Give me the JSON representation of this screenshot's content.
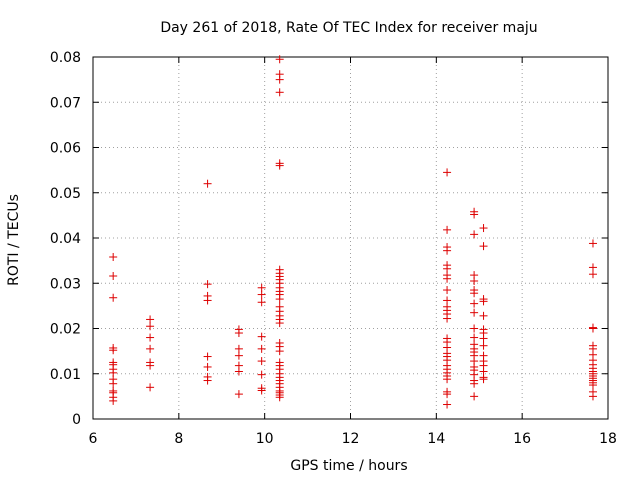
{
  "chart_data": {
    "type": "scatter",
    "title": "Day 261 of 2018, Rate Of TEC Index for receiver maju",
    "xlabel": "GPS time / hours",
    "ylabel": "ROTI / TECUs",
    "xlim": [
      6,
      18
    ],
    "ylim": [
      0,
      0.08
    ],
    "xticks": [
      6,
      8,
      10,
      12,
      14,
      16,
      18
    ],
    "xtick_labels": [
      "6",
      "8",
      "10",
      "12",
      "14",
      "16",
      "18"
    ],
    "yticks": [
      0,
      0.01,
      0.02,
      0.03,
      0.04,
      0.05,
      0.06,
      0.07,
      0.08
    ],
    "ytick_labels": [
      "0",
      "0.01",
      "0.02",
      "0.03",
      "0.04",
      "0.05",
      "0.06",
      "0.07",
      "0.08"
    ],
    "grid": true,
    "marker": "+",
    "color": "#dd0000",
    "series": [
      {
        "name": "ROTI",
        "points": [
          [
            6.47,
            0.0358
          ],
          [
            6.47,
            0.0316
          ],
          [
            6.47,
            0.0268
          ],
          [
            6.47,
            0.0157
          ],
          [
            6.47,
            0.0152
          ],
          [
            6.47,
            0.0125
          ],
          [
            6.47,
            0.012
          ],
          [
            6.47,
            0.011
          ],
          [
            6.47,
            0.0102
          ],
          [
            6.47,
            0.0088
          ],
          [
            6.47,
            0.0078
          ],
          [
            6.47,
            0.0062
          ],
          [
            6.47,
            0.0058
          ],
          [
            6.47,
            0.0048
          ],
          [
            6.47,
            0.004
          ],
          [
            7.33,
            0.022
          ],
          [
            7.33,
            0.0205
          ],
          [
            7.33,
            0.018
          ],
          [
            7.33,
            0.0155
          ],
          [
            7.33,
            0.0125
          ],
          [
            7.33,
            0.0118
          ],
          [
            7.33,
            0.007
          ],
          [
            8.67,
            0.052
          ],
          [
            8.67,
            0.0298
          ],
          [
            8.67,
            0.0272
          ],
          [
            8.67,
            0.0262
          ],
          [
            8.67,
            0.0138
          ],
          [
            8.67,
            0.0115
          ],
          [
            8.67,
            0.0093
          ],
          [
            8.67,
            0.0085
          ],
          [
            9.4,
            0.0198
          ],
          [
            9.4,
            0.019
          ],
          [
            9.4,
            0.0155
          ],
          [
            9.4,
            0.014
          ],
          [
            9.4,
            0.0118
          ],
          [
            9.4,
            0.0105
          ],
          [
            9.4,
            0.0055
          ],
          [
            9.93,
            0.029
          ],
          [
            9.93,
            0.0275
          ],
          [
            9.93,
            0.0258
          ],
          [
            9.93,
            0.0182
          ],
          [
            9.93,
            0.0155
          ],
          [
            9.93,
            0.0128
          ],
          [
            9.93,
            0.0098
          ],
          [
            9.93,
            0.0068
          ],
          [
            9.93,
            0.0063
          ],
          [
            10.35,
            0.0795
          ],
          [
            10.35,
            0.0762
          ],
          [
            10.35,
            0.075
          ],
          [
            10.35,
            0.0722
          ],
          [
            10.35,
            0.0565
          ],
          [
            10.35,
            0.056
          ],
          [
            10.35,
            0.033
          ],
          [
            10.35,
            0.0322
          ],
          [
            10.35,
            0.0315
          ],
          [
            10.35,
            0.0308
          ],
          [
            10.35,
            0.03
          ],
          [
            10.35,
            0.029
          ],
          [
            10.35,
            0.0282
          ],
          [
            10.35,
            0.0275
          ],
          [
            10.35,
            0.0265
          ],
          [
            10.35,
            0.0248
          ],
          [
            10.35,
            0.0238
          ],
          [
            10.35,
            0.0228
          ],
          [
            10.35,
            0.022
          ],
          [
            10.35,
            0.0212
          ],
          [
            10.35,
            0.0168
          ],
          [
            10.35,
            0.016
          ],
          [
            10.35,
            0.015
          ],
          [
            10.35,
            0.0125
          ],
          [
            10.35,
            0.0118
          ],
          [
            10.35,
            0.011
          ],
          [
            10.35,
            0.01
          ],
          [
            10.35,
            0.0092
          ],
          [
            10.35,
            0.0085
          ],
          [
            10.35,
            0.0078
          ],
          [
            10.35,
            0.007
          ],
          [
            10.35,
            0.0062
          ],
          [
            10.35,
            0.0058
          ],
          [
            10.35,
            0.0053
          ],
          [
            10.35,
            0.0048
          ],
          [
            14.25,
            0.0545
          ],
          [
            14.25,
            0.0418
          ],
          [
            14.25,
            0.038
          ],
          [
            14.25,
            0.0372
          ],
          [
            14.25,
            0.034
          ],
          [
            14.25,
            0.0332
          ],
          [
            14.25,
            0.0318
          ],
          [
            14.25,
            0.031
          ],
          [
            14.25,
            0.0285
          ],
          [
            14.25,
            0.0262
          ],
          [
            14.25,
            0.0248
          ],
          [
            14.25,
            0.024
          ],
          [
            14.25,
            0.0232
          ],
          [
            14.25,
            0.0222
          ],
          [
            14.25,
            0.0178
          ],
          [
            14.25,
            0.017
          ],
          [
            14.25,
            0.0158
          ],
          [
            14.25,
            0.0145
          ],
          [
            14.25,
            0.0138
          ],
          [
            14.25,
            0.013
          ],
          [
            14.25,
            0.0118
          ],
          [
            14.25,
            0.011
          ],
          [
            14.25,
            0.0102
          ],
          [
            14.25,
            0.0095
          ],
          [
            14.25,
            0.0088
          ],
          [
            14.25,
            0.006
          ],
          [
            14.25,
            0.0055
          ],
          [
            14.25,
            0.0032
          ],
          [
            14.88,
            0.0458
          ],
          [
            14.88,
            0.0452
          ],
          [
            14.88,
            0.0408
          ],
          [
            14.88,
            0.0318
          ],
          [
            14.88,
            0.0305
          ],
          [
            14.88,
            0.0285
          ],
          [
            14.88,
            0.0278
          ],
          [
            14.88,
            0.0255
          ],
          [
            14.88,
            0.0235
          ],
          [
            14.88,
            0.02
          ],
          [
            14.88,
            0.018
          ],
          [
            14.88,
            0.0165
          ],
          [
            14.88,
            0.0155
          ],
          [
            14.88,
            0.0148
          ],
          [
            14.88,
            0.014
          ],
          [
            14.88,
            0.0128
          ],
          [
            14.88,
            0.0115
          ],
          [
            14.88,
            0.0108
          ],
          [
            14.88,
            0.0098
          ],
          [
            14.88,
            0.0085
          ],
          [
            14.88,
            0.0078
          ],
          [
            14.88,
            0.005
          ],
          [
            15.1,
            0.0422
          ],
          [
            15.1,
            0.0382
          ],
          [
            15.1,
            0.0265
          ],
          [
            15.1,
            0.026
          ],
          [
            15.1,
            0.0228
          ],
          [
            15.1,
            0.0198
          ],
          [
            15.1,
            0.019
          ],
          [
            15.1,
            0.0178
          ],
          [
            15.1,
            0.0162
          ],
          [
            15.1,
            0.014
          ],
          [
            15.1,
            0.0128
          ],
          [
            15.1,
            0.0118
          ],
          [
            15.1,
            0.0105
          ],
          [
            15.1,
            0.0092
          ],
          [
            15.1,
            0.0088
          ],
          [
            17.65,
            0.0388
          ],
          [
            17.65,
            0.0335
          ],
          [
            17.65,
            0.032
          ],
          [
            17.65,
            0.0202
          ],
          [
            17.65,
            0.02
          ],
          [
            17.65,
            0.0162
          ],
          [
            17.65,
            0.0155
          ],
          [
            17.65,
            0.0142
          ],
          [
            17.65,
            0.013
          ],
          [
            17.65,
            0.012
          ],
          [
            17.65,
            0.0112
          ],
          [
            17.65,
            0.0105
          ],
          [
            17.65,
            0.01
          ],
          [
            17.65,
            0.0095
          ],
          [
            17.65,
            0.009
          ],
          [
            17.65,
            0.0085
          ],
          [
            17.65,
            0.008
          ],
          [
            17.65,
            0.0075
          ],
          [
            17.65,
            0.006
          ],
          [
            17.65,
            0.005
          ]
        ]
      }
    ]
  }
}
